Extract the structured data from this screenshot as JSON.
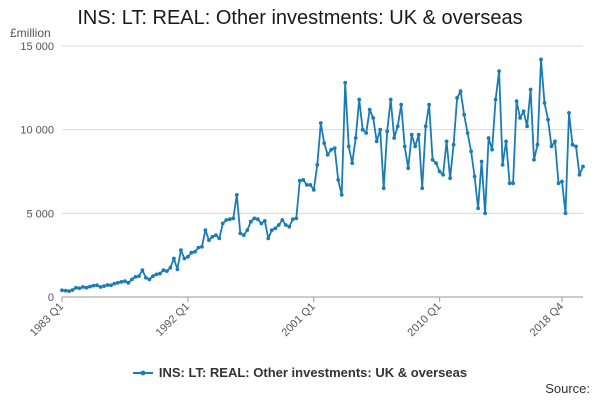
{
  "chart_data": {
    "type": "line",
    "title": "INS: LT: REAL: Other investments: UK & overseas",
    "ylabel": "£million",
    "xlabel": "",
    "ylim": [
      0,
      15000
    ],
    "yticks": [
      0,
      5000,
      10000,
      15000
    ],
    "ytick_labels": [
      "0",
      "5 000",
      "10 000",
      "15 000"
    ],
    "xtick_labels": [
      "1983 Q1",
      "1992 Q1",
      "2001 Q1",
      "2010 Q1",
      "2018 Q4"
    ],
    "xtick_positions": [
      0,
      36,
      72,
      108,
      143
    ],
    "grid": true,
    "legend_position": "bottom-center",
    "series": [
      {
        "name": "INS: LT: REAL: Other investments: UK & overseas",
        "color": "#1b7bb5",
        "values": [
          400,
          380,
          350,
          420,
          550,
          520,
          600,
          560,
          620,
          680,
          700,
          600,
          650,
          720,
          700,
          800,
          850,
          900,
          950,
          850,
          1050,
          1200,
          1250,
          1600,
          1150,
          1050,
          1250,
          1350,
          1400,
          1600,
          1550,
          1750,
          2300,
          1650,
          2800,
          2300,
          2400,
          2650,
          2700,
          2950,
          3000,
          4000,
          3400,
          3600,
          3700,
          3500,
          4400,
          4600,
          4650,
          4700,
          6100,
          3800,
          3700,
          4000,
          4500,
          4700,
          4650,
          4400,
          4550,
          3500,
          4000,
          4100,
          4300,
          4600,
          4300,
          4200,
          4650,
          4700,
          6950,
          7000,
          6700,
          6700,
          6400,
          7900,
          10400,
          9200,
          8500,
          8800,
          8900,
          7000,
          6100,
          12800,
          9000,
          8000,
          9500,
          11800,
          10000,
          9800,
          11200,
          10700,
          9300,
          10000,
          6500,
          9900,
          11800,
          9500,
          10200,
          11500,
          9000,
          7700,
          9700,
          9000,
          9700,
          6500,
          10200,
          11500,
          8200,
          8000,
          7500,
          7300,
          9300,
          7100,
          9100,
          11900,
          12300,
          10900,
          9800,
          8700,
          7200,
          5300,
          8100,
          5000,
          9500,
          8800,
          11800,
          13500,
          7900,
          9300,
          6800,
          6800,
          11700,
          10700,
          11100,
          10200,
          12400,
          8200,
          9100,
          14200,
          11600,
          10600,
          9000,
          9300,
          6800,
          6900,
          5000,
          11000,
          9100,
          9000,
          7300,
          7800
        ]
      }
    ]
  },
  "footer": {
    "source_label": "Source:"
  }
}
